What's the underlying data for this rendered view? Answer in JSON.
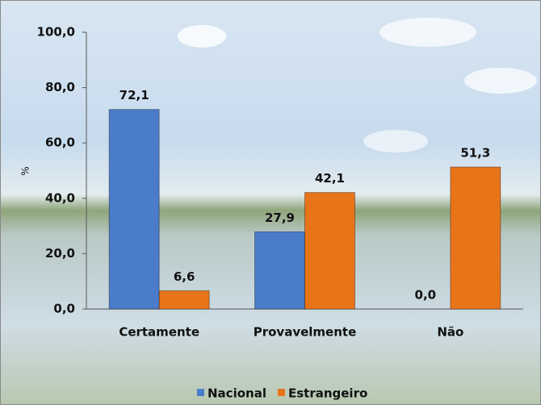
{
  "chart_data": {
    "type": "bar",
    "y_label": "%",
    "categories": [
      "Certamente",
      "Provavelmente",
      "Não"
    ],
    "series": [
      {
        "name": "Nacional",
        "color": "#4a7cc9",
        "values": [
          72.1,
          27.9,
          0.0
        ],
        "value_labels": [
          "72,1",
          "27,9",
          "0,0"
        ]
      },
      {
        "name": "Estrangeiro",
        "color": "#e8741a",
        "values": [
          6.6,
          42.1,
          51.3
        ],
        "value_labels": [
          "6,6",
          "42,1",
          "51,3"
        ]
      }
    ],
    "ylim": [
      0,
      100
    ],
    "yticks": [
      {
        "value": 0,
        "label": "0,0"
      },
      {
        "value": 20,
        "label": "20,0"
      },
      {
        "value": 40,
        "label": "40,0"
      },
      {
        "value": 60,
        "label": "60,0"
      },
      {
        "value": 80,
        "label": "80,0"
      },
      {
        "value": 100,
        "label": "100,0"
      }
    ],
    "grid": false
  }
}
